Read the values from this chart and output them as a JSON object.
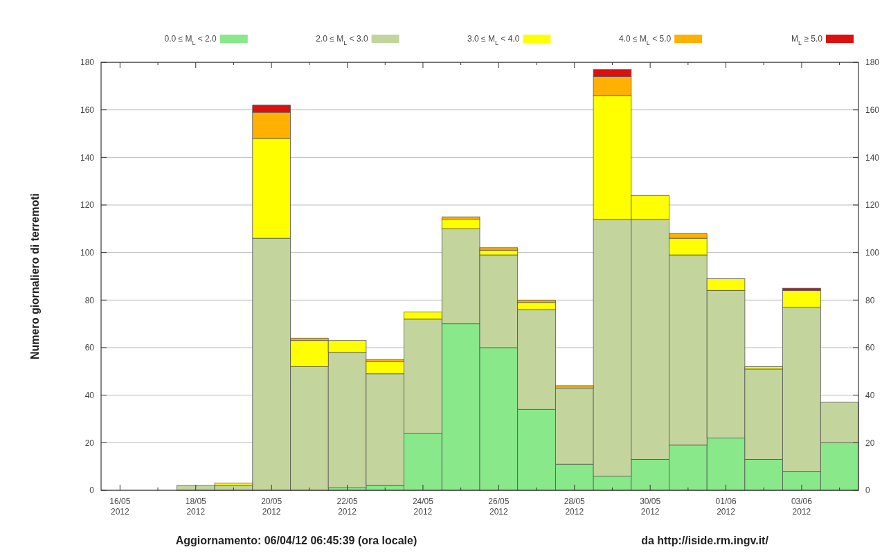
{
  "chart_data": {
    "type": "bar",
    "stacked": true,
    "categories": [
      "16/05\n2012",
      null,
      "18/05\n2012",
      null,
      "20/05\n2012",
      null,
      "22/05\n2012",
      null,
      "24/05\n2012",
      null,
      "26/05\n2012",
      null,
      "28/05\n2012",
      null,
      "30/05\n2012",
      null,
      "01/06\n2012",
      null,
      "03/06\n2012",
      null
    ],
    "series": [
      {
        "name": "0.0 ≤ M$_{L}$ < 2.0",
        "color": "#88e88a",
        "values": [
          0,
          0,
          0,
          0,
          0,
          0,
          1,
          2,
          24,
          70,
          60,
          34,
          11,
          6,
          13,
          19,
          22,
          13,
          8,
          20
        ]
      },
      {
        "name": "2.0 ≤ M$_{L}$ < 3.0",
        "color": "#c3d59c",
        "values": [
          0,
          0,
          2,
          2,
          106,
          52,
          57,
          47,
          48,
          40,
          39,
          42,
          32,
          108,
          101,
          80,
          62,
          38,
          69,
          17
        ]
      },
      {
        "name": "3.0 ≤ M$_{L}$ < 4.0",
        "color": "#ffff00",
        "values": [
          0,
          0,
          0,
          1,
          42,
          11,
          5,
          5,
          3,
          4,
          2,
          3,
          0,
          52,
          10,
          7,
          5,
          1,
          7,
          0
        ]
      },
      {
        "name": "4.0 ≤ M$_{L}$ < 5.0",
        "color": "#ffb000",
        "values": [
          0,
          0,
          0,
          0,
          11,
          1,
          0,
          1,
          0,
          1,
          1,
          1,
          1,
          8,
          0,
          2,
          0,
          0,
          0,
          0
        ]
      },
      {
        "name": "M$_{L}$ ≥ 5.0",
        "color": "#dd1010",
        "values": [
          0,
          0,
          0,
          0,
          3,
          0,
          0,
          0,
          0,
          0,
          0,
          0,
          0,
          3,
          0,
          0,
          0,
          0,
          1,
          0
        ]
      }
    ],
    "ylabel": "Numero giornaliero di terremoti",
    "ylim": [
      0,
      180
    ],
    "yticks": [
      0,
      20,
      40,
      60,
      80,
      100,
      120,
      140,
      160,
      180
    ],
    "y2lim": [
      0,
      180
    ],
    "y2ticks": [
      0,
      20,
      40,
      60,
      80,
      100,
      120,
      140,
      160,
      180
    ],
    "grid": "y",
    "legend": "top",
    "annotations": [
      "Aggiornamento: 06/04/12 06:45:39 (ora locale)",
      "da http://iside.rm.ingv.it/"
    ]
  }
}
